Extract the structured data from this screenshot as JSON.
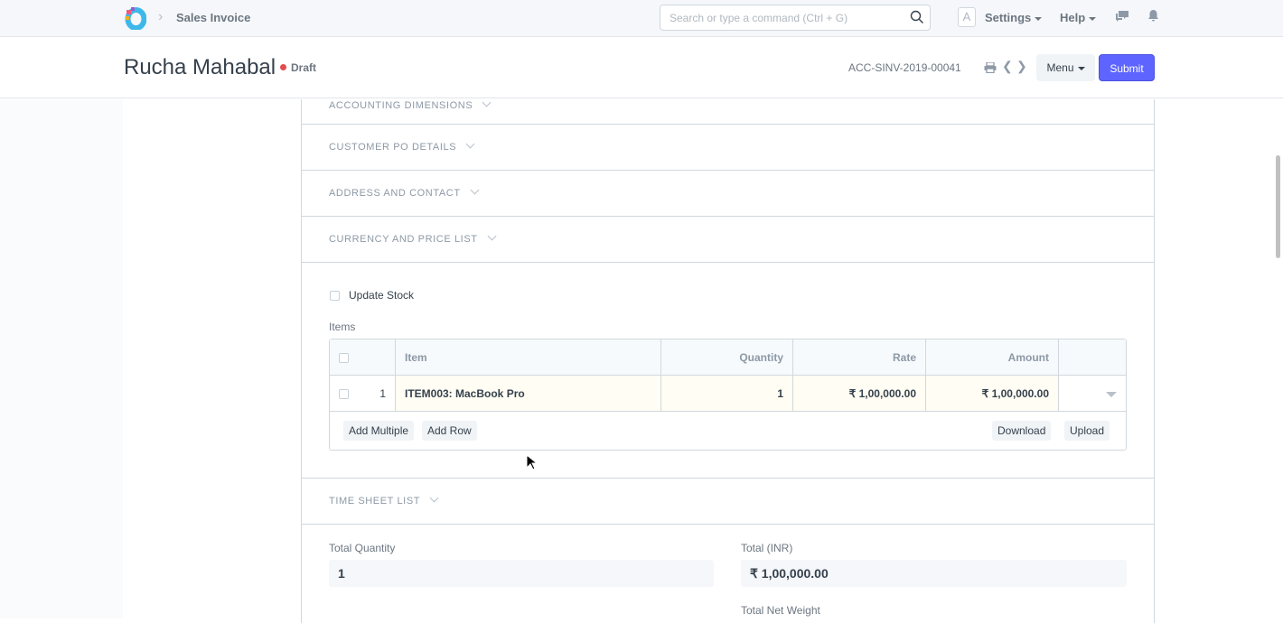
{
  "navbar": {
    "breadcrumb": "Sales Invoice",
    "search_placeholder": "Search or type a command (Ctrl + G)",
    "avatar": "A",
    "settings": "Settings",
    "help": "Help"
  },
  "header": {
    "title": "Rucha Mahabal",
    "status": "Draft",
    "status_color": "#e24c4c",
    "doc_name": "ACC-SINV-2019-00041",
    "menu": "Menu",
    "submit": "Submit",
    "accent": "#5e64ff"
  },
  "sections": [
    "ACCOUNTING DIMENSIONS",
    "CUSTOMER PO DETAILS",
    "ADDRESS AND CONTACT",
    "CURRENCY AND PRICE LIST"
  ],
  "update_stock": "Update Stock",
  "items": {
    "label": "Items",
    "columns": [
      "Item",
      "Quantity",
      "Rate",
      "Amount"
    ],
    "rows": [
      {
        "idx": "1",
        "item": "ITEM003: MacBook Pro",
        "qty": "1",
        "rate": "₹ 1,00,000.00",
        "amount": "₹ 1,00,000.00"
      }
    ],
    "add_multiple": "Add Multiple",
    "add_row": "Add Row",
    "download": "Download",
    "upload": "Upload"
  },
  "timesheet": "TIME SHEET LIST",
  "totals": {
    "total_qty_label": "Total Quantity",
    "total_qty": "1",
    "total_label": "Total (INR)",
    "total": "₹ 1,00,000.00",
    "net_weight_label": "Total Net Weight"
  }
}
